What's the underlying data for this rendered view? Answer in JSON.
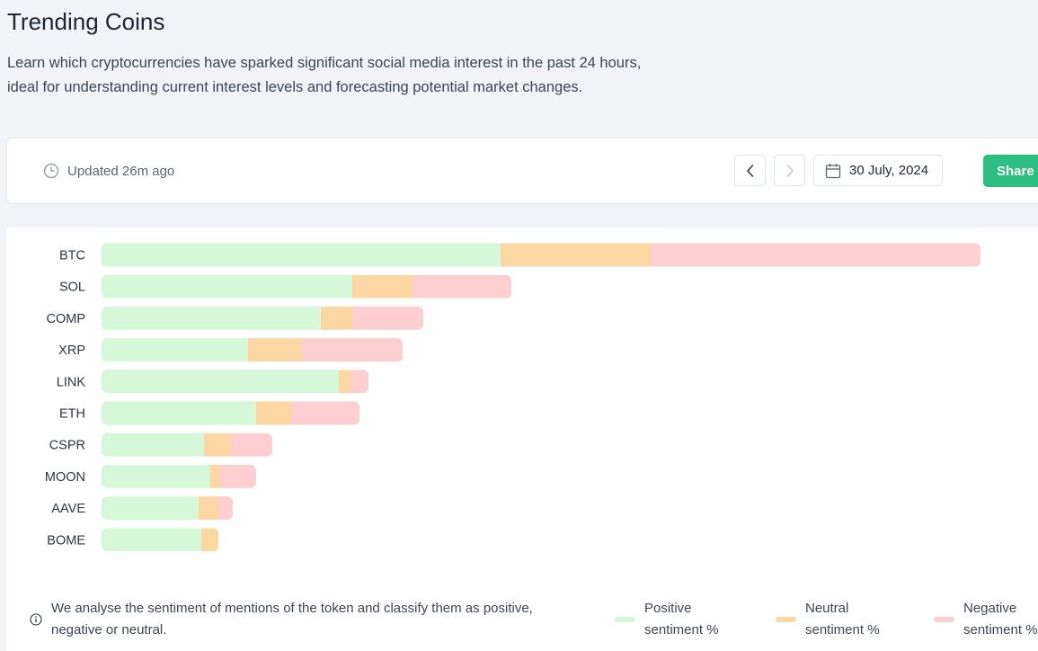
{
  "header": {
    "title": "Trending Coins",
    "description_line1": "Learn which cryptocurrencies have sparked significant social media interest in the past 24 hours,",
    "description_line2": "ideal for understanding current interest levels and forecasting potential market changes."
  },
  "toolbar": {
    "updated_text": "Updated 26m ago",
    "date": "30 July, 2024",
    "share_label": "Share"
  },
  "colors": {
    "positive": "#d6f7d8",
    "neutral": "#fdd7a3",
    "negative": "#fdcfd0",
    "accent": "#2dbf82"
  },
  "chart_data": {
    "type": "bar",
    "orientation": "horizontal",
    "stacked": true,
    "categories": [
      "BTC",
      "SOL",
      "COMP",
      "XRP",
      "LINK",
      "ETH",
      "CSPR",
      "MOON",
      "AAVE",
      "BOME"
    ],
    "series": [
      {
        "name": "Positive sentiment %",
        "values": [
          444,
          279,
          244,
          163,
          264,
          172,
          114,
          121,
          108,
          111
        ]
      },
      {
        "name": "Neutral sentiment %",
        "values": [
          167,
          67,
          35,
          60,
          14,
          39,
          30,
          11,
          22,
          19
        ]
      },
      {
        "name": "Negative sentiment %",
        "values": [
          367,
          110,
          79,
          112,
          19,
          76,
          46,
          40,
          16,
          0
        ]
      }
    ],
    "grid": false,
    "legend": "bottom-right"
  },
  "footer": {
    "note_line1": "We analyse the sentiment of mentions of the token and classify them as positive,",
    "note_line2": "negative or neutral.",
    "legend": [
      {
        "line1": "Positive",
        "line2": "sentiment %",
        "color": "#d6f7d8"
      },
      {
        "line1": "Neutral",
        "line2": "sentiment %",
        "color": "#fdd7a3"
      },
      {
        "line1": "Negative",
        "line2": "sentiment %",
        "color": "#fdcfd0"
      }
    ]
  }
}
